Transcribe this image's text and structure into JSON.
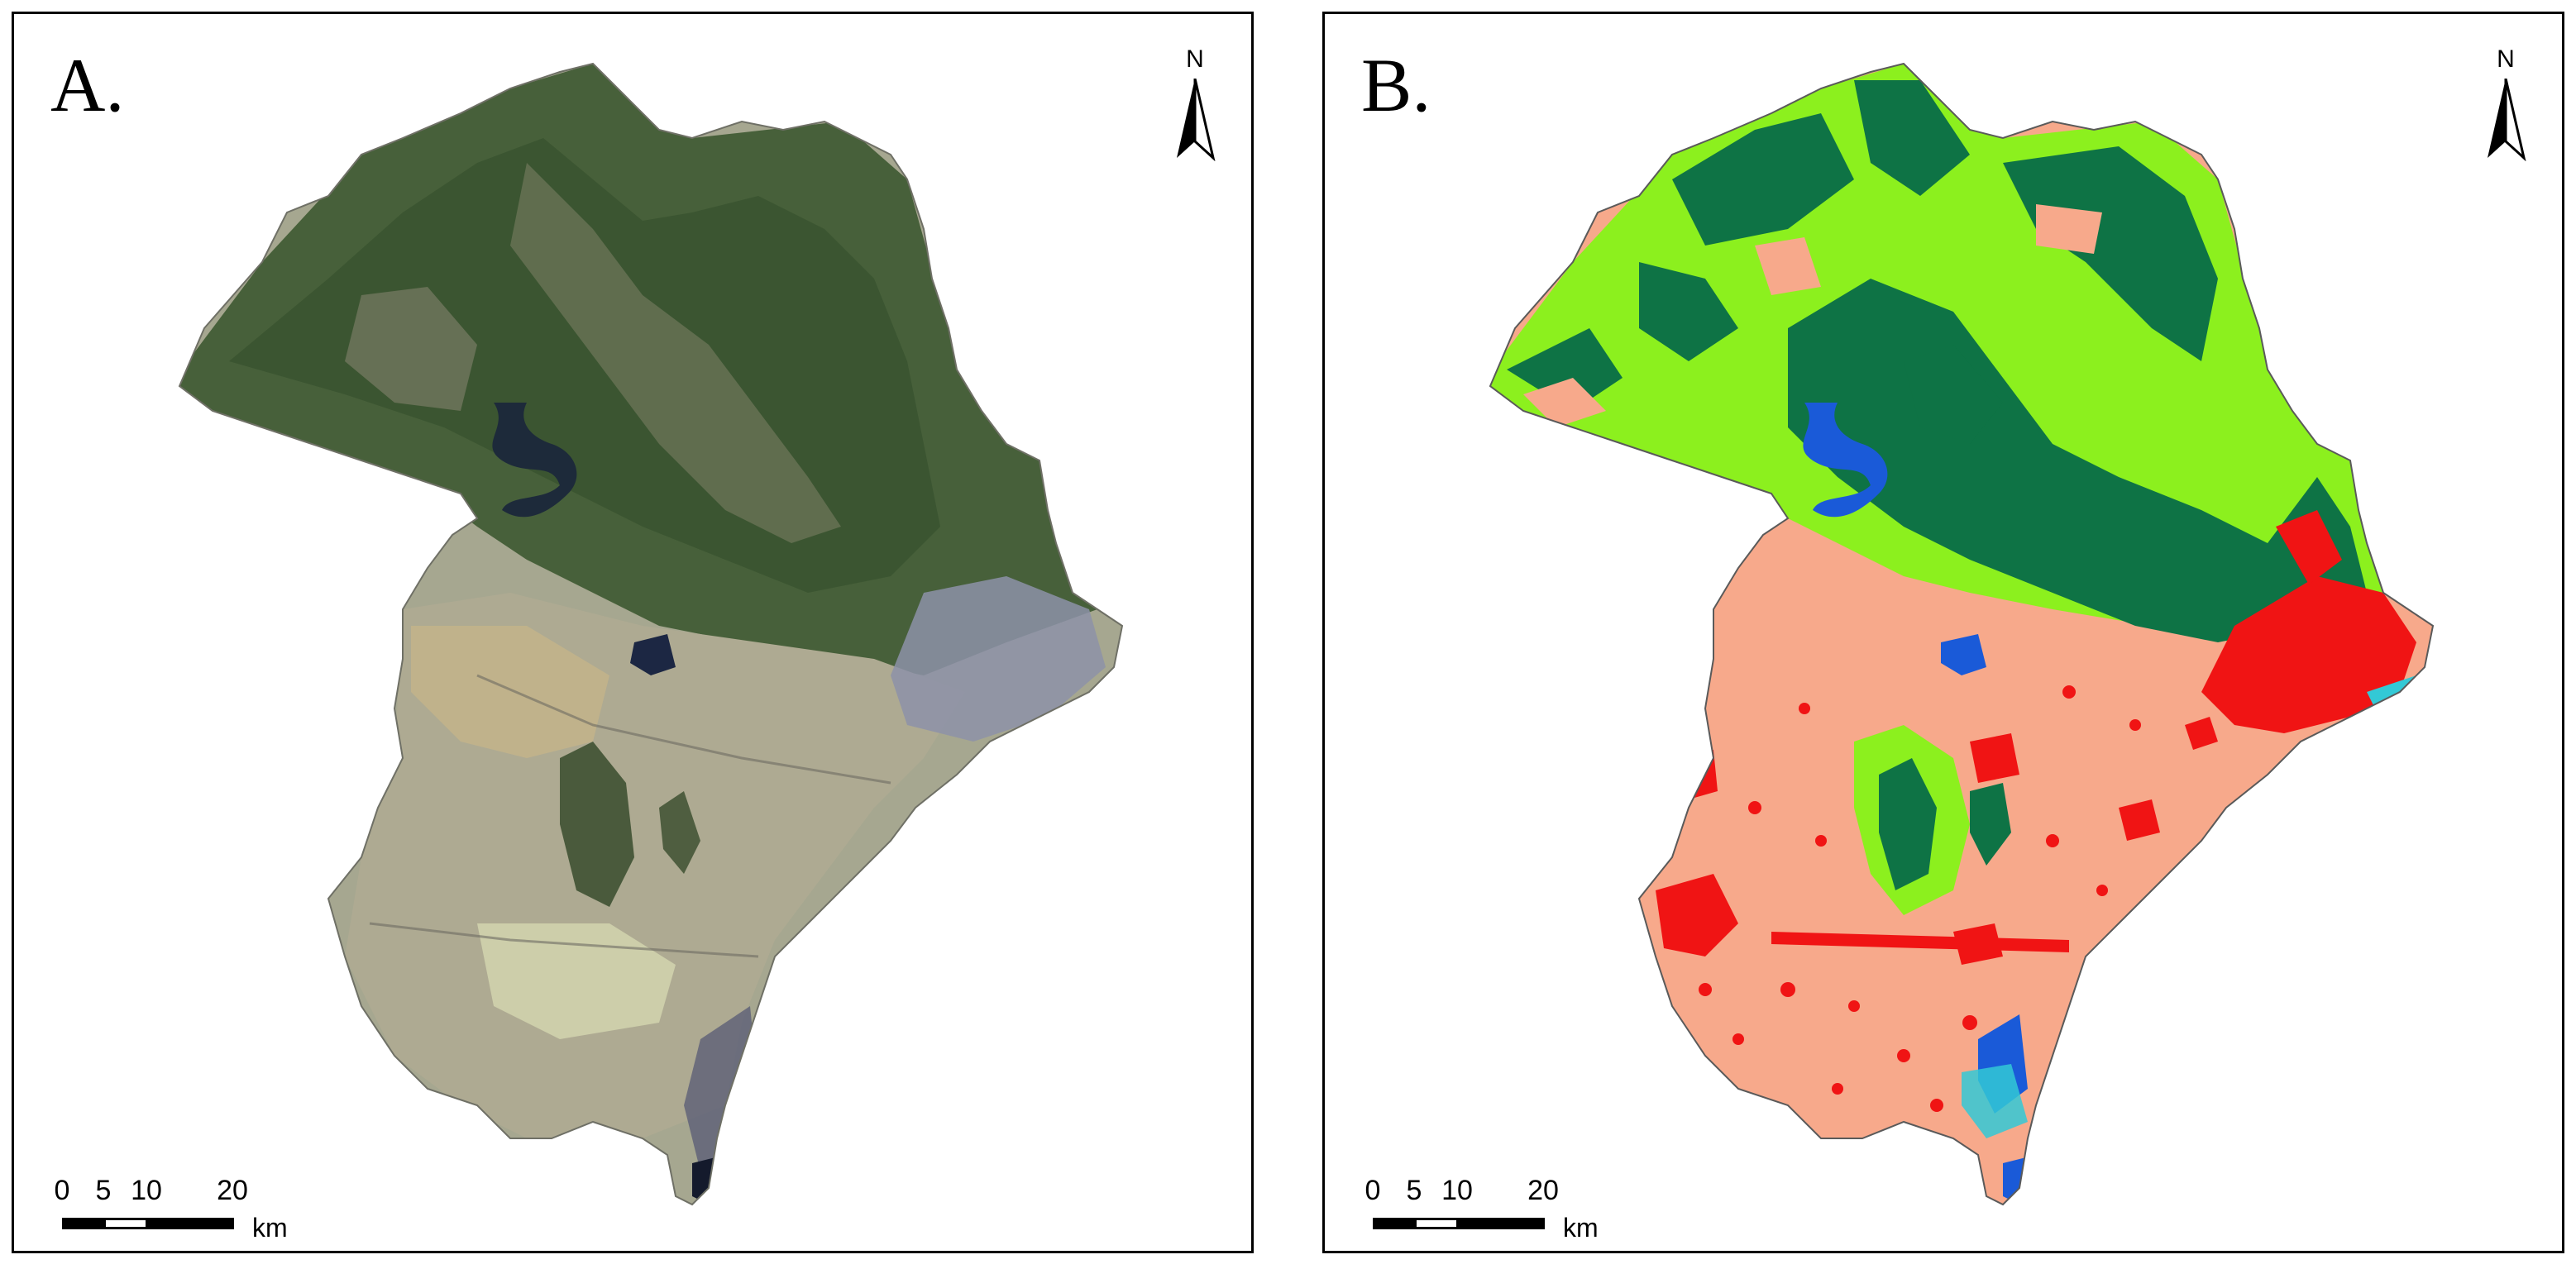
{
  "panels": [
    {
      "id": "A",
      "label": "A.",
      "type": "satellite-image",
      "north_label": "N",
      "scale_ticks": [
        "0",
        "5",
        "10",
        "20"
      ],
      "scale_unit": "km",
      "colors": {
        "forest": "#3d5a33",
        "farmland": "#b3a98a",
        "urban": "#8f93a6",
        "water": "#1e2a44",
        "bare": "#c7c2a6"
      }
    },
    {
      "id": "B",
      "label": "B.",
      "type": "land-cover-classification",
      "north_label": "N",
      "scale_ticks": [
        "0",
        "5",
        "10",
        "20"
      ],
      "scale_unit": "km",
      "colors": {
        "forest": "#0e7345",
        "grassland": "#8cf01e",
        "farmland": "#f7a98b",
        "built-up": "#f01414",
        "water": "#1a5ad8",
        "wetland": "#33c9d6"
      }
    }
  ]
}
